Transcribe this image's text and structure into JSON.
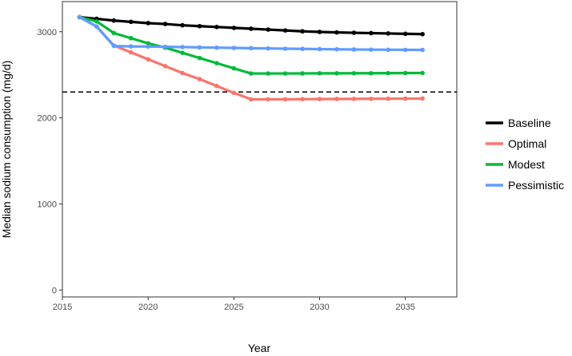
{
  "chart_data": {
    "type": "line",
    "title": "",
    "xlabel": "Year",
    "ylabel": "Median sodium consumption (mg/d)",
    "xlim": [
      2015,
      2038
    ],
    "ylim": [
      -80,
      3350
    ],
    "x_ticks": [
      2015,
      2020,
      2025,
      2030,
      2035
    ],
    "y_ticks": [
      0,
      1000,
      2000,
      3000
    ],
    "grid": false,
    "legend_position": "right",
    "reference_line": {
      "y": 2300,
      "style": "dashed",
      "color": "#000000"
    },
    "x": [
      2016,
      2017,
      2018,
      2019,
      2020,
      2021,
      2022,
      2023,
      2024,
      2025,
      2026,
      2027,
      2028,
      2029,
      2030,
      2031,
      2032,
      2033,
      2034,
      2035,
      2036
    ],
    "series": [
      {
        "name": "Baseline",
        "color": "#000000",
        "values": [
          3170,
          3150,
          3130,
          3115,
          3100,
          3090,
          3075,
          3065,
          3055,
          3045,
          3035,
          3025,
          3015,
          3005,
          2998,
          2992,
          2988,
          2984,
          2980,
          2976,
          2972
        ]
      },
      {
        "name": "Optimal",
        "color": "#f8766d",
        "values": [
          3170,
          3060,
          2840,
          2760,
          2680,
          2600,
          2520,
          2450,
          2370,
          2290,
          2215,
          2215,
          2215,
          2217,
          2218,
          2219,
          2220,
          2221,
          2222,
          2223,
          2224
        ]
      },
      {
        "name": "Modest",
        "color": "#00ba38",
        "values": [
          3170,
          3120,
          2985,
          2925,
          2865,
          2815,
          2755,
          2695,
          2635,
          2575,
          2515,
          2515,
          2515,
          2516,
          2517,
          2517,
          2518,
          2518,
          2519,
          2520,
          2521
        ]
      },
      {
        "name": "Pessimistic",
        "color": "#619cff",
        "values": [
          3170,
          3060,
          2835,
          2830,
          2828,
          2825,
          2822,
          2818,
          2815,
          2812,
          2809,
          2806,
          2803,
          2801,
          2798,
          2796,
          2794,
          2792,
          2791,
          2790,
          2789
        ]
      }
    ]
  }
}
